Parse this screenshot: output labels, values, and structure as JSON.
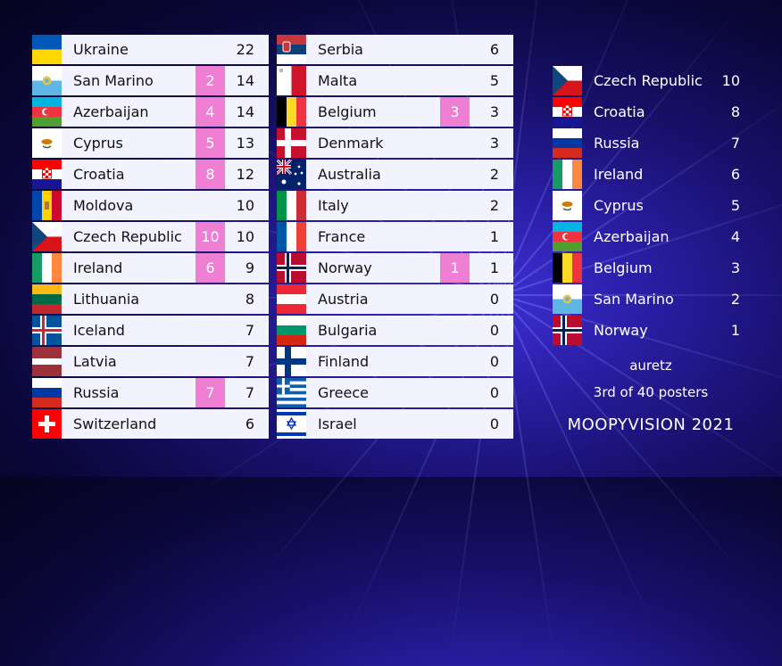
{
  "colors": {
    "card": "#f3f2ff",
    "badge": "#ee7fd3",
    "text": "#111111"
  },
  "left_column": [
    {
      "country": "Ukraine",
      "points": "",
      "total": "22",
      "flag": "ukraine-flag"
    },
    {
      "country": "San Marino",
      "points": "2",
      "total": "14",
      "flag": "san-marino-flag"
    },
    {
      "country": "Azerbaijan",
      "points": "4",
      "total": "14",
      "flag": "azerbaijan-flag"
    },
    {
      "country": "Cyprus",
      "points": "5",
      "total": "13",
      "flag": "cyprus-flag"
    },
    {
      "country": "Croatia",
      "points": "8",
      "total": "12",
      "flag": "croatia-flag"
    },
    {
      "country": "Moldova",
      "points": "",
      "total": "10",
      "flag": "moldova-flag"
    },
    {
      "country": "Czech Republic",
      "points": "10",
      "total": "10",
      "flag": "czech-flag"
    },
    {
      "country": "Ireland",
      "points": "6",
      "total": "9",
      "flag": "ireland-flag"
    },
    {
      "country": "Lithuania",
      "points": "",
      "total": "8",
      "flag": "lithuania-flag"
    },
    {
      "country": "Iceland",
      "points": "",
      "total": "7",
      "flag": "iceland-flag"
    },
    {
      "country": "Latvia",
      "points": "",
      "total": "7",
      "flag": "latvia-flag"
    },
    {
      "country": "Russia",
      "points": "7",
      "total": "7",
      "flag": "russia-flag"
    },
    {
      "country": "Switzerland",
      "points": "",
      "total": "6",
      "flag": "switzerland-flag"
    }
  ],
  "middle_column": [
    {
      "country": "Serbia",
      "points": "",
      "total": "6",
      "flag": "serbia-flag"
    },
    {
      "country": "Malta",
      "points": "",
      "total": "5",
      "flag": "malta-flag"
    },
    {
      "country": "Belgium",
      "points": "3",
      "total": "3",
      "flag": "belgium-flag"
    },
    {
      "country": "Denmark",
      "points": "",
      "total": "3",
      "flag": "denmark-flag"
    },
    {
      "country": "Australia",
      "points": "",
      "total": "2",
      "flag": "australia-flag"
    },
    {
      "country": "Italy",
      "points": "",
      "total": "2",
      "flag": "italy-flag"
    },
    {
      "country": "France",
      "points": "",
      "total": "1",
      "flag": "france-flag"
    },
    {
      "country": "Norway",
      "points": "1",
      "total": "1",
      "flag": "norway-flag"
    },
    {
      "country": "Austria",
      "points": "",
      "total": "0",
      "flag": "austria-flag"
    },
    {
      "country": "Bulgaria",
      "points": "",
      "total": "0",
      "flag": "bulgaria-flag"
    },
    {
      "country": "Finland",
      "points": "",
      "total": "0",
      "flag": "finland-flag"
    },
    {
      "country": "Greece",
      "points": "",
      "total": "0",
      "flag": "greece-flag"
    },
    {
      "country": "Israel",
      "points": "",
      "total": "0",
      "flag": "israel-flag"
    }
  ],
  "points_given": [
    {
      "country": "Czech Republic",
      "points": "10",
      "flag": "czech-flag"
    },
    {
      "country": "Croatia",
      "points": "8",
      "flag": "croatia-flag"
    },
    {
      "country": "Russia",
      "points": "7",
      "flag": "russia-flag"
    },
    {
      "country": "Ireland",
      "points": "6",
      "flag": "ireland-flag"
    },
    {
      "country": "Cyprus",
      "points": "5",
      "flag": "cyprus-flag"
    },
    {
      "country": "Azerbaijan",
      "points": "4",
      "flag": "azerbaijan-flag"
    },
    {
      "country": "Belgium",
      "points": "3",
      "flag": "belgium-flag"
    },
    {
      "country": "San Marino",
      "points": "2",
      "flag": "san-marino-flag"
    },
    {
      "country": "Norway",
      "points": "1",
      "flag": "norway-flag"
    }
  ],
  "credits": {
    "user": "auretz",
    "rank": "3rd of 40 posters",
    "brand": "MOOPYVISION 2021"
  }
}
